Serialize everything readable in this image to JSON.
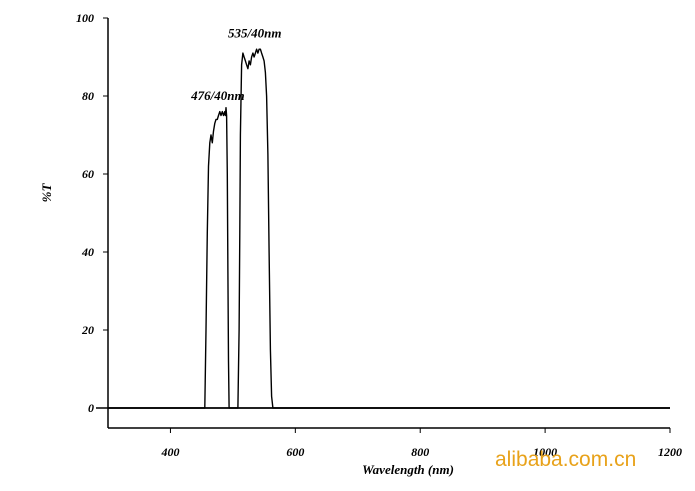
{
  "chart_data": {
    "type": "line",
    "xlabel": "Wavelength (nm)",
    "ylabel": "%T",
    "xlim": [
      300,
      1200
    ],
    "ylim": [
      -5,
      100
    ],
    "x_ticks": [
      400,
      600,
      800,
      1000,
      1200
    ],
    "y_ticks": [
      0,
      20,
      40,
      60,
      80,
      100
    ],
    "grid": false,
    "series": [
      {
        "name": "476/40nm",
        "x": [
          300,
          455,
          457,
          459,
          461,
          463,
          465,
          467,
          469,
          471,
          473,
          475,
          477,
          479,
          481,
          483,
          485,
          487,
          488,
          489,
          490,
          491,
          492,
          493,
          494,
          496,
          498,
          500,
          1200
        ],
        "y": [
          0,
          0,
          20,
          45,
          62,
          68,
          70,
          68,
          71,
          73,
          74,
          74,
          75,
          76,
          75,
          76,
          75,
          76,
          75,
          77,
          75,
          60,
          35,
          12,
          0,
          0,
          0,
          0,
          0
        ]
      },
      {
        "name": "535/40nm",
        "x": [
          300,
          508,
          510,
          511,
          512,
          514,
          516,
          518,
          520,
          522,
          524,
          526,
          528,
          530,
          532,
          534,
          536,
          538,
          540,
          542,
          544,
          546,
          548,
          550,
          552,
          554,
          556,
          558,
          560,
          562,
          564,
          1200
        ],
        "y": [
          0,
          0,
          20,
          45,
          70,
          88,
          91,
          90,
          89,
          88,
          87,
          89,
          88,
          90,
          91,
          90,
          91,
          92,
          91,
          92,
          92,
          91,
          90,
          89,
          86,
          80,
          65,
          40,
          15,
          3,
          0,
          0
        ]
      }
    ],
    "annotations": [
      {
        "text": "476/40nm",
        "x": 476,
        "y": 79
      },
      {
        "text": "535/40nm",
        "x": 535,
        "y": 95
      }
    ]
  },
  "watermark": "alibaba.com.cn"
}
